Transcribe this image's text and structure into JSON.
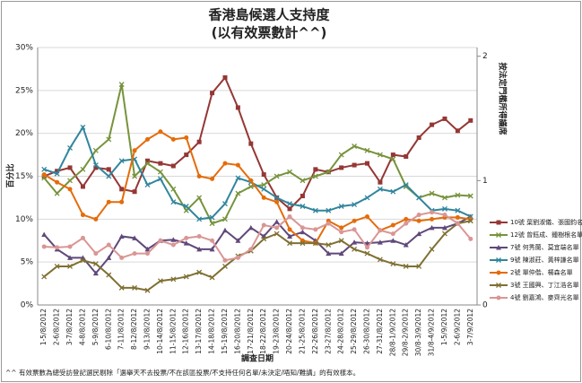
{
  "chart_data": {
    "type": "line",
    "title": "香港島候選人支持度",
    "subtitle": "(以有效票數計^^)",
    "y_label": "百分比",
    "y2_label": "按法定門檻所得議席",
    "x_label": "調查日期",
    "footnote": "^^ 有效票數為總受訪登記選民剔除「選舉天不去投票/不在該區投票/不支持任何名單/未決定/唔知/難講」的有效樣本。",
    "categories": [
      "1-5/8/2012",
      "2-6/8/2012",
      "3-7/8/2012",
      "4-8/8/2012",
      "5-9/8/2012",
      "6-10/8/2012",
      "7-11/8/2012",
      "8-12/8/2012",
      "9-13/8/2012",
      "10-14/8/2012",
      "11-15/8/2012",
      "12-16/8/2012",
      "13-17/8/2012",
      "14-18/8/2012",
      "15-19/8/2012",
      "16-20/8/2012",
      "17-21/8/2012",
      "18-22/8/2012",
      "19-23/8/2012",
      "20-24/8/2012",
      "21-25/8/2012",
      "22-26/8/2012",
      "23-27/8/2012",
      "24-28/8/2012",
      "25-29/8/2012",
      "26-30/8/2012",
      "27-31/8/2012",
      "28/8-1/9/2012",
      "29/8-2/9/2012",
      "30/8-3/9/2012",
      "31/8-4/9/2012",
      "1-5/9/2012",
      "2-6/9/2012",
      "3-7/9/2012"
    ],
    "series": [
      {
        "name": "10號 葉劉淑儀、張國鈞名單",
        "color": "#953735",
        "marker": "square",
        "values": [
          15.0,
          15.6,
          16.0,
          13.8,
          16.0,
          15.8,
          13.5,
          13.2,
          16.8,
          16.5,
          16.2,
          17.5,
          19.0,
          24.7,
          26.5,
          23.0,
          18.8,
          15.2,
          12.5,
          11.2,
          12.7,
          15.8,
          15.5,
          16.0,
          16.3,
          16.5,
          14.3,
          17.5,
          17.3,
          19.5,
          21.0,
          21.7,
          20.3,
          21.5
        ]
      },
      {
        "name": "12號 曾鈺成、鍾樹根名單",
        "color": "#77933c",
        "marker": "x",
        "values": [
          14.8,
          13.0,
          14.5,
          15.8,
          18.0,
          19.3,
          25.7,
          15.0,
          16.5,
          15.5,
          13.5,
          11.0,
          12.5,
          9.5,
          10.0,
          13.0,
          13.8,
          14.0,
          15.0,
          15.5,
          14.5,
          15.0,
          15.5,
          17.5,
          18.5,
          18.0,
          17.5,
          17.0,
          13.8,
          12.5,
          13.0,
          12.5,
          12.8,
          12.7
        ]
      },
      {
        "name": "7號 何秀蘭、莫宜端名單",
        "color": "#60497a",
        "marker": "triangle",
        "values": [
          8.2,
          6.5,
          5.5,
          5.5,
          3.7,
          5.5,
          8.0,
          7.8,
          6.5,
          7.5,
          7.6,
          7.2,
          6.5,
          6.5,
          8.7,
          7.5,
          9.0,
          8.0,
          9.7,
          8.0,
          8.5,
          7.5,
          6.0,
          6.0,
          7.3,
          7.2,
          7.3,
          7.5,
          7.0,
          8.3,
          9.0,
          9.0,
          9.5,
          10.3
        ]
      },
      {
        "name": "9號 陳淑莊、黃梓謙名單",
        "color": "#31859c",
        "marker": "x",
        "values": [
          15.8,
          15.3,
          18.3,
          20.7,
          16.3,
          15.0,
          16.8,
          17.0,
          14.0,
          14.7,
          12.0,
          11.5,
          10.0,
          10.2,
          11.8,
          14.8,
          14.3,
          13.5,
          12.5,
          11.8,
          11.5,
          11.0,
          11.0,
          11.5,
          11.7,
          12.5,
          13.5,
          13.2,
          14.0,
          12.5,
          11.0,
          11.2,
          11.0,
          10.3
        ]
      },
      {
        "name": "2號 單仲偕、楊森名單",
        "color": "#e46c0a",
        "marker": "circle",
        "values": [
          15.2,
          14.3,
          13.5,
          10.5,
          10.0,
          12.0,
          12.0,
          18.0,
          19.3,
          20.2,
          19.3,
          19.5,
          15.0,
          14.7,
          16.5,
          16.3,
          14.5,
          12.5,
          12.0,
          8.8,
          7.5,
          7.2,
          9.8,
          9.0,
          9.8,
          10.3,
          8.7,
          9.3,
          10.0,
          9.8,
          10.0,
          10.2,
          10.2,
          10.0
        ]
      },
      {
        "name": "3號 王國興、丁江浩名單",
        "color": "#7f7032",
        "marker": "x",
        "values": [
          3.3,
          4.5,
          4.5,
          5.2,
          4.8,
          3.5,
          2.0,
          2.0,
          1.7,
          2.8,
          3.0,
          3.3,
          3.8,
          3.2,
          4.5,
          5.7,
          6.3,
          7.7,
          8.3,
          7.2,
          7.2,
          7.2,
          7.0,
          7.5,
          6.5,
          6.0,
          5.3,
          4.8,
          4.5,
          4.5,
          6.5,
          8.3,
          9.5,
          9.8
        ]
      },
      {
        "name": "4號 劉嘉鴻、麥齊光名單",
        "color": "#d99694",
        "marker": "circle",
        "values": [
          6.8,
          6.7,
          6.8,
          7.8,
          6.0,
          7.0,
          5.5,
          6.0,
          6.0,
          7.5,
          7.0,
          7.8,
          8.0,
          7.5,
          5.2,
          5.5,
          6.5,
          9.3,
          9.0,
          10.3,
          9.0,
          8.8,
          9.5,
          8.5,
          8.8,
          6.7,
          8.7,
          8.3,
          9.5,
          10.5,
          10.8,
          10.5,
          9.5,
          7.7
        ]
      }
    ],
    "ylim": [
      0,
      30
    ],
    "yticks": [
      {
        "value": 0,
        "label": "0%"
      },
      {
        "value": 5,
        "label": "5%"
      },
      {
        "value": 10,
        "label": "10%"
      },
      {
        "value": 15,
        "label": "15%"
      },
      {
        "value": 20,
        "label": "20%"
      },
      {
        "value": 25,
        "label": "25%"
      },
      {
        "value": 30,
        "label": "30%"
      }
    ],
    "y2lim": [
      0,
      2.07
    ],
    "y2ticks": [
      0,
      1,
      2
    ],
    "grid": true,
    "legend": "right"
  }
}
